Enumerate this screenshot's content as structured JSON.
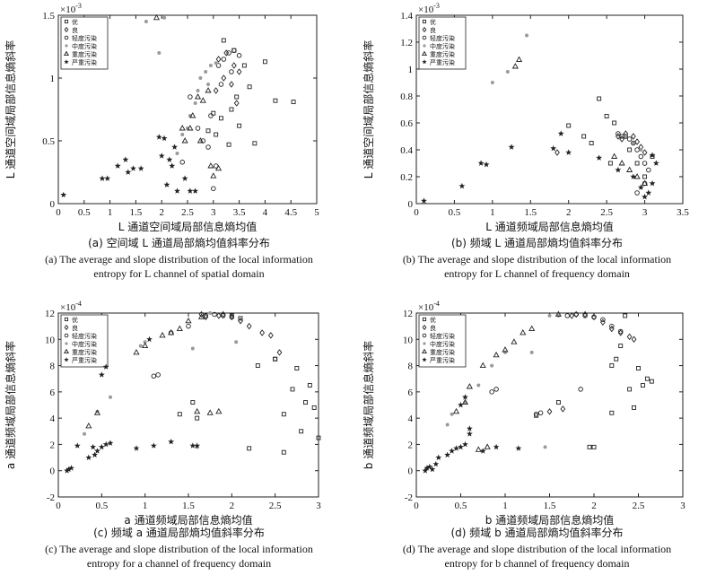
{
  "chart_data": [
    {
      "type": "scatter",
      "panel": "a",
      "xlabel": "L 通道空间域局部信息熵均值",
      "ylabel": "L 通道空间域局部信息熵斜率",
      "scale_label": "×10",
      "scale_exp": "-3",
      "xlim": [
        0,
        5
      ],
      "ylim": [
        0,
        1.5
      ],
      "xticks": [
        "0",
        "0.5",
        "1",
        "1.5",
        "2",
        "2.5",
        "3",
        "3.5",
        "4",
        "4.5",
        "5"
      ],
      "yticks": [
        "0",
        "0.5",
        "1",
        "1.5"
      ],
      "caption_zh": "(a) 空间域 L 通道局部熵均值斜率分布",
      "caption_en_1": "(a) The average and slope distribution of the local information",
      "caption_en_2": "entropy for L channel  of spatial domain",
      "series": [
        {
          "name": "优",
          "marker": "square",
          "color": "#222222",
          "x": [
            3.2,
            3.4,
            3.6,
            3.7,
            4.0,
            4.2,
            4.55,
            3.15,
            3.35,
            3.5,
            3.8,
            2.9,
            3.0,
            3.05,
            3.3,
            3.45
          ],
          "y": [
            1.3,
            1.22,
            1.1,
            0.93,
            1.13,
            0.82,
            0.81,
            0.68,
            0.75,
            0.62,
            0.48,
            0.58,
            0.72,
            0.55,
            0.47,
            0.85
          ]
        },
        {
          "name": "良",
          "marker": "diamond",
          "color": "#222222",
          "x": [
            3.1,
            3.25,
            3.4,
            3.5,
            3.05,
            3.35,
            3.2,
            3.45
          ],
          "y": [
            1.15,
            1.2,
            1.1,
            1.05,
            0.9,
            0.95,
            1.0,
            0.8
          ]
        },
        {
          "name": "轻度污染",
          "marker": "circle",
          "color": "#222222",
          "x": [
            2.55,
            2.7,
            2.9,
            3.05,
            3.1,
            3.2,
            3.3,
            3.4,
            3.5,
            3.15,
            2.95,
            2.8,
            2.4,
            3.0,
            3.35
          ],
          "y": [
            0.85,
            0.6,
            0.45,
            0.3,
            1.1,
            1.15,
            1.2,
            1.22,
            1.18,
            0.95,
            0.7,
            0.5,
            0.33,
            0.12,
            1.05
          ]
        },
        {
          "name": "中度污染",
          "marker": "dot",
          "color": "#9a9a9a",
          "x": [
            1.7,
            1.95,
            2.05,
            2.4,
            2.55,
            2.65,
            2.75,
            2.85,
            2.95,
            3.05,
            2.3,
            2.5,
            2.7,
            2.9
          ],
          "y": [
            1.45,
            1.2,
            1.48,
            0.55,
            0.7,
            0.8,
            1.0,
            1.05,
            1.1,
            1.12,
            0.4,
            0.6,
            0.9,
            0.95
          ]
        },
        {
          "name": "重度污染",
          "marker": "triangle",
          "color": "#222222",
          "x": [
            1.9,
            2.4,
            2.55,
            2.7,
            2.8,
            2.9,
            2.95,
            3.0,
            3.1,
            2.6,
            2.45,
            2.75
          ],
          "y": [
            1.48,
            0.6,
            0.6,
            0.85,
            0.82,
            0.9,
            0.3,
            0.22,
            0.28,
            0.7,
            0.5,
            0.5
          ]
        },
        {
          "name": "严重污染",
          "marker": "star",
          "color": "#222222",
          "x": [
            0.1,
            0.85,
            0.95,
            1.15,
            1.3,
            1.45,
            1.6,
            1.35,
            1.95,
            2.0,
            2.1,
            2.2,
            2.3,
            2.45,
            2.55,
            2.65,
            2.05,
            2.25,
            2.15
          ],
          "y": [
            0.07,
            0.2,
            0.2,
            0.3,
            0.35,
            0.28,
            0.28,
            0.25,
            0.53,
            0.38,
            0.15,
            0.3,
            0.1,
            0.2,
            0.1,
            0.1,
            0.52,
            0.45,
            0.35
          ]
        }
      ]
    },
    {
      "type": "scatter",
      "panel": "b",
      "xlabel": "L 通道频域局部信息熵均值",
      "ylabel": "L 通道空间域局部信息熵斜率",
      "scale_label": "×10",
      "scale_exp": "-3",
      "xlim": [
        0,
        3.5
      ],
      "ylim": [
        0,
        1.4
      ],
      "xticks": [
        "0",
        "0.5",
        "1",
        "1.5",
        "2",
        "2.5",
        "3",
        "3.5"
      ],
      "yticks": [
        "0",
        "0.2",
        "0.4",
        "0.6",
        "0.8",
        "1",
        "1.2",
        "1.4"
      ],
      "caption_zh": "(b) 频域 L 通道局部熵均值斜率分布",
      "caption_en_1": "(b) The average and slope distribution of the local information",
      "caption_en_2": "entropy for L channel of frequency domain",
      "series": [
        {
          "name": "优",
          "marker": "square",
          "color": "#222222",
          "x": [
            2.0,
            2.2,
            2.4,
            2.5,
            2.6,
            2.3,
            2.8,
            2.9,
            3.0,
            3.1,
            2.7,
            2.55
          ],
          "y": [
            0.58,
            0.5,
            0.78,
            0.65,
            0.6,
            0.45,
            0.4,
            0.3,
            0.2,
            0.35,
            0.5,
            0.3
          ]
        },
        {
          "name": "良",
          "marker": "diamond",
          "color": "#222222",
          "x": [
            1.85,
            2.65,
            2.75,
            2.85,
            2.9,
            2.95,
            3.0,
            2.7
          ],
          "y": [
            0.38,
            0.5,
            0.52,
            0.5,
            0.46,
            0.42,
            0.38,
            0.48
          ]
        },
        {
          "name": "轻度污染",
          "marker": "circle",
          "color": "#222222",
          "x": [
            2.65,
            2.75,
            2.8,
            2.85,
            2.9,
            2.95,
            3.0,
            3.05,
            2.9,
            3.0
          ],
          "y": [
            0.52,
            0.5,
            0.48,
            0.45,
            0.4,
            0.35,
            0.3,
            0.25,
            0.08,
            0.15
          ]
        },
        {
          "name": "中度污染",
          "marker": "dot",
          "color": "#9a9a9a",
          "x": [
            1.0,
            1.2,
            1.45,
            2.75,
            2.85,
            2.95
          ],
          "y": [
            0.9,
            0.98,
            1.25,
            0.5,
            0.45,
            0.4
          ]
        },
        {
          "name": "重度污染",
          "marker": "triangle",
          "color": "#222222",
          "x": [
            1.3,
            1.35,
            2.6,
            2.7,
            2.8,
            2.9,
            3.0
          ],
          "y": [
            1.02,
            1.07,
            0.35,
            0.3,
            0.25,
            0.2,
            0.15
          ]
        },
        {
          "name": "严重污染",
          "marker": "star",
          "color": "#222222",
          "x": [
            0.1,
            0.6,
            0.85,
            0.92,
            1.25,
            1.8,
            1.9,
            2.0,
            2.4,
            2.65,
            2.85,
            2.95,
            3.05,
            3.1,
            3.15,
            3.0,
            3.1
          ],
          "y": [
            0.02,
            0.13,
            0.3,
            0.29,
            0.42,
            0.41,
            0.52,
            0.38,
            0.34,
            0.25,
            0.2,
            0.12,
            0.08,
            0.15,
            0.3,
            0.05,
            0.36
          ]
        }
      ]
    },
    {
      "type": "scatter",
      "panel": "c",
      "xlabel": "a 通道频域局部信息熵均值",
      "ylabel": "a 通道频域局部信息熵斜率",
      "scale_label": "×10",
      "scale_exp": "-4",
      "xlim": [
        0,
        3
      ],
      "ylim": [
        -2,
        12
      ],
      "xticks": [
        "0",
        "0.5",
        "1",
        "1.5",
        "2",
        "2.5",
        "3"
      ],
      "yticks": [
        "-2",
        "0",
        "2",
        "4",
        "6",
        "8",
        "10",
        "12"
      ],
      "caption_zh": "(c) 频域 a 通道局部熵均值斜率分布",
      "caption_en_1": "(c) The average and slope distribution of the local information",
      "caption_en_2": "entropy for a channel of frequency domain",
      "series": [
        {
          "name": "优",
          "marker": "square",
          "color": "#222222",
          "x": [
            1.4,
            1.55,
            1.6,
            2.0,
            2.1,
            2.3,
            2.5,
            2.6,
            2.7,
            2.75,
            2.8,
            2.85,
            2.9,
            2.95,
            3.0,
            2.2,
            2.5,
            2.6
          ],
          "y": [
            4.3,
            5.2,
            4.0,
            11.8,
            11.6,
            8.0,
            8.5,
            1.4,
            6.2,
            7.8,
            3.0,
            5.2,
            6.5,
            4.8,
            2.5,
            1.7,
            8.5,
            4.3
          ]
        },
        {
          "name": "良",
          "marker": "diamond",
          "color": "#222222",
          "x": [
            1.7,
            1.85,
            2.0,
            2.1,
            2.2,
            2.35,
            2.45,
            2.55,
            1.65,
            1.9
          ],
          "y": [
            11.7,
            11.8,
            11.7,
            11.4,
            11.0,
            10.5,
            10.3,
            9.0,
            11.9,
            11.9
          ]
        },
        {
          "name": "轻度污染",
          "marker": "circle",
          "color": "#222222",
          "x": [
            1.1,
            1.15,
            1.3,
            1.5,
            1.7,
            1.8,
            1.9,
            2.0
          ],
          "y": [
            7.2,
            7.3,
            10.5,
            11.0,
            11.8,
            11.9,
            11.8,
            11.7
          ]
        },
        {
          "name": "中度污染",
          "marker": "dot",
          "color": "#9a9a9a",
          "x": [
            0.3,
            0.45,
            0.6,
            0.95,
            1.0,
            1.55,
            1.6,
            1.75,
            2.05
          ],
          "y": [
            2.8,
            4.5,
            5.6,
            9.5,
            9.8,
            9.3,
            1.8,
            12.0,
            9.8
          ]
        },
        {
          "name": "重度污染",
          "marker": "triangle",
          "color": "#222222",
          "x": [
            0.35,
            0.45,
            0.9,
            1.0,
            1.2,
            1.3,
            1.4,
            1.5,
            1.6,
            1.75,
            1.85,
            1.65
          ],
          "y": [
            3.4,
            4.4,
            9.0,
            9.5,
            10.3,
            10.5,
            10.8,
            11.4,
            4.5,
            4.4,
            4.5,
            11.7
          ]
        },
        {
          "name": "严重污染",
          "marker": "star",
          "color": "#222222",
          "x": [
            0.1,
            0.12,
            0.15,
            0.22,
            0.35,
            0.4,
            0.42,
            0.45,
            0.5,
            0.55,
            0.6,
            0.5,
            0.55,
            0.9,
            1.1,
            1.3,
            1.55,
            1.6,
            1.05
          ],
          "y": [
            0.0,
            0.1,
            0.2,
            1.9,
            1.0,
            1.8,
            1.2,
            1.5,
            1.8,
            2.0,
            2.1,
            7.3,
            7.9,
            1.7,
            1.9,
            2.2,
            1.9,
            1.9,
            10.0
          ]
        }
      ]
    },
    {
      "type": "scatter",
      "panel": "d",
      "xlabel": "b 通道频域局部信息熵均值",
      "ylabel": "b 通道频域局部信息熵斜率",
      "scale_label": "×10",
      "scale_exp": "-4",
      "xlim": [
        0,
        3
      ],
      "ylim": [
        -2,
        12
      ],
      "xticks": [
        "0",
        "0.5",
        "1",
        "1.5",
        "2",
        "2.5",
        "3"
      ],
      "yticks": [
        "-2",
        "0",
        "2",
        "4",
        "6",
        "8",
        "10",
        "12"
      ],
      "caption_zh": "(d) 频域 b 通道局部熵均值斜率分布",
      "caption_en_1": "(d) The average and slope distribution of the local information",
      "caption_en_2": "entropy for b channel of frequency domain",
      "series": [
        {
          "name": "优",
          "marker": "square",
          "color": "#222222",
          "x": [
            1.35,
            1.6,
            1.95,
            2.0,
            2.2,
            2.25,
            2.3,
            2.4,
            2.45,
            2.5,
            2.55,
            2.6,
            2.2,
            2.65,
            2.35
          ],
          "y": [
            4.2,
            5.2,
            1.8,
            1.8,
            8.0,
            8.5,
            9.5,
            6.2,
            4.8,
            7.8,
            6.5,
            7.0,
            4.4,
            6.8,
            11.8
          ]
        },
        {
          "name": "良",
          "marker": "diamond",
          "color": "#222222",
          "x": [
            1.5,
            1.65,
            1.8,
            1.9,
            2.0,
            2.1,
            2.2,
            2.3,
            2.4,
            2.45,
            1.75
          ],
          "y": [
            4.5,
            4.7,
            11.9,
            11.9,
            11.7,
            11.3,
            10.8,
            10.5,
            10.2,
            10.0,
            11.8
          ]
        },
        {
          "name": "轻度污染",
          "marker": "circle",
          "color": "#222222",
          "x": [
            0.85,
            0.9,
            1.35,
            1.4,
            1.7,
            1.8,
            1.9,
            2.0,
            2.1,
            2.2,
            2.3,
            1.85
          ],
          "y": [
            6.0,
            6.2,
            4.3,
            4.4,
            11.8,
            11.9,
            11.8,
            11.7,
            11.5,
            11.0,
            10.6,
            6.2
          ]
        },
        {
          "name": "中度污染",
          "marker": "dot",
          "color": "#9a9a9a",
          "x": [
            0.35,
            0.4,
            0.55,
            0.7,
            0.85,
            1.0,
            1.3,
            1.45,
            1.5,
            1.6
          ],
          "y": [
            3.5,
            4.3,
            5.2,
            6.5,
            8.0,
            9.0,
            9.0,
            1.8,
            11.8,
            11.8
          ]
        },
        {
          "name": "重度污染",
          "marker": "triangle",
          "color": "#222222",
          "x": [
            0.45,
            0.55,
            0.6,
            0.75,
            0.9,
            1.0,
            1.1,
            1.2,
            1.3,
            1.6,
            0.7,
            0.8
          ],
          "y": [
            4.5,
            5.2,
            6.4,
            8.0,
            8.8,
            9.2,
            9.8,
            10.5,
            10.8,
            11.9,
            1.6,
            1.8
          ]
        },
        {
          "name": "严重污染",
          "marker": "star",
          "color": "#222222",
          "x": [
            0.1,
            0.12,
            0.15,
            0.18,
            0.22,
            0.25,
            0.35,
            0.4,
            0.45,
            0.5,
            0.55,
            0.6,
            0.75,
            0.9,
            1.15,
            0.6,
            0.5,
            0.55
          ],
          "y": [
            0.0,
            0.2,
            0.3,
            0.1,
            0.5,
            1.0,
            1.2,
            1.5,
            1.7,
            1.8,
            2.0,
            2.8,
            1.5,
            1.8,
            1.7,
            3.2,
            5.0,
            5.6
          ]
        }
      ]
    }
  ]
}
